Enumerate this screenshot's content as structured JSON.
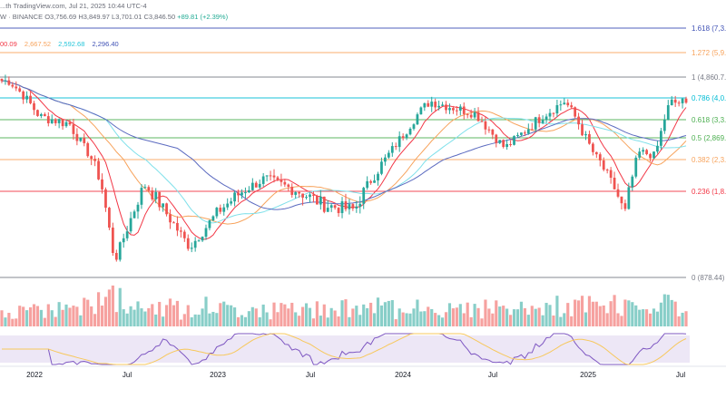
{
  "header": {
    "source_line_prefix": "...th TradingView.com, Jul 21, 2025 10:44 UTC-4",
    "symbol_fragment": "W · BINANCE",
    "open": "O3,756.69",
    "high": "H3,849.97",
    "low": "L3,701.01",
    "close": "C3,846.50",
    "change": "+89.81 (+2.39%)",
    "ma_values": [
      {
        "text": "00.09",
        "color": "#f23645"
      },
      {
        "text": "2,667.52",
        "color": "#f7a35c"
      },
      {
        "text": "2,592.68",
        "color": "#26c6da"
      },
      {
        "text": "2,296.40",
        "color": "#3f51b5"
      }
    ]
  },
  "fib_levels": [
    {
      "ratio": "1.618",
      "value_text": "1.618 (7,3...",
      "color": "#3f51b5"
    },
    {
      "ratio": "1.272",
      "value_text": "1.272 (5,9...",
      "color": "#f7a35c"
    },
    {
      "ratio": "1",
      "value_text": "1 (4,860.7...",
      "color": "#787b86"
    },
    {
      "ratio": "0.786",
      "value_text": "0.786 (4,0...",
      "color": "#00bcd4"
    },
    {
      "ratio": "0.618",
      "value_text": "0.618 (3,3...",
      "color": "#4caf50"
    },
    {
      "ratio": "0.5",
      "value_text": "0.5 (2,869...",
      "color": "#4caf50"
    },
    {
      "ratio": "0.382",
      "value_text": "0.382 (2,3...",
      "color": "#f7a35c"
    },
    {
      "ratio": "0.236",
      "value_text": "0.236 (1,8...",
      "color": "#f23645"
    },
    {
      "ratio": "0",
      "value_text": "0 (878.44)",
      "color": "#787b86"
    }
  ],
  "x_axis": {
    "ticks": [
      "2022",
      "Jul",
      "2023",
      "Jul",
      "2024",
      "Jul",
      "2025",
      "Jul"
    ]
  },
  "colors": {
    "up": "#26a69a",
    "down": "#ef5350",
    "ma_red": "#f23645",
    "ma_orange": "#f7a35c",
    "ma_cyan": "#7fe0ea",
    "ma_blue": "#5c6bc0",
    "rsi_line": "#7e57c2",
    "rsi_ma": "#f7c85c",
    "rsi_band": "#ede7f6"
  },
  "chart_data": {
    "type": "candlestick",
    "symbol_fragment": "W · BINANCE",
    "interval": "1W",
    "fib_ratios": [
      1.618,
      1.272,
      1,
      0.786,
      0.618,
      0.5,
      0.382,
      0.236,
      0
    ],
    "fib_prices": [
      7300,
      5900,
      4860.7,
      4000,
      3300,
      2869,
      2300,
      1800,
      878.44
    ],
    "ma_last_values": [
      2667.52,
      2592.68,
      2296.4
    ],
    "x_ticks": [
      "2022",
      "Jul",
      "2023",
      "Jul",
      "2024",
      "Jul",
      "2025",
      "Jul"
    ],
    "price_path_points": [
      {
        "date": "2021-11",
        "close": 4700
      },
      {
        "date": "2022-01",
        "close": 3400
      },
      {
        "date": "2022-03",
        "close": 3200
      },
      {
        "date": "2022-05",
        "close": 2000
      },
      {
        "date": "2022-06",
        "close": 1050
      },
      {
        "date": "2022-08",
        "close": 1900
      },
      {
        "date": "2022-11",
        "close": 1200
      },
      {
        "date": "2023-01",
        "close": 1600
      },
      {
        "date": "2023-04",
        "close": 2000
      },
      {
        "date": "2023-08",
        "close": 1650
      },
      {
        "date": "2023-10",
        "close": 1600
      },
      {
        "date": "2023-12",
        "close": 2300
      },
      {
        "date": "2024-03",
        "close": 3900
      },
      {
        "date": "2024-06",
        "close": 3500
      },
      {
        "date": "2024-08",
        "close": 2600
      },
      {
        "date": "2024-12",
        "close": 3900
      },
      {
        "date": "2025-02",
        "close": 2400
      },
      {
        "date": "2025-04",
        "close": 1550
      },
      {
        "date": "2025-05",
        "close": 2500
      },
      {
        "date": "2025-06",
        "close": 2400
      },
      {
        "date": "2025-07",
        "close": 3846.5
      }
    ],
    "grid": false,
    "legend": "top-left"
  }
}
